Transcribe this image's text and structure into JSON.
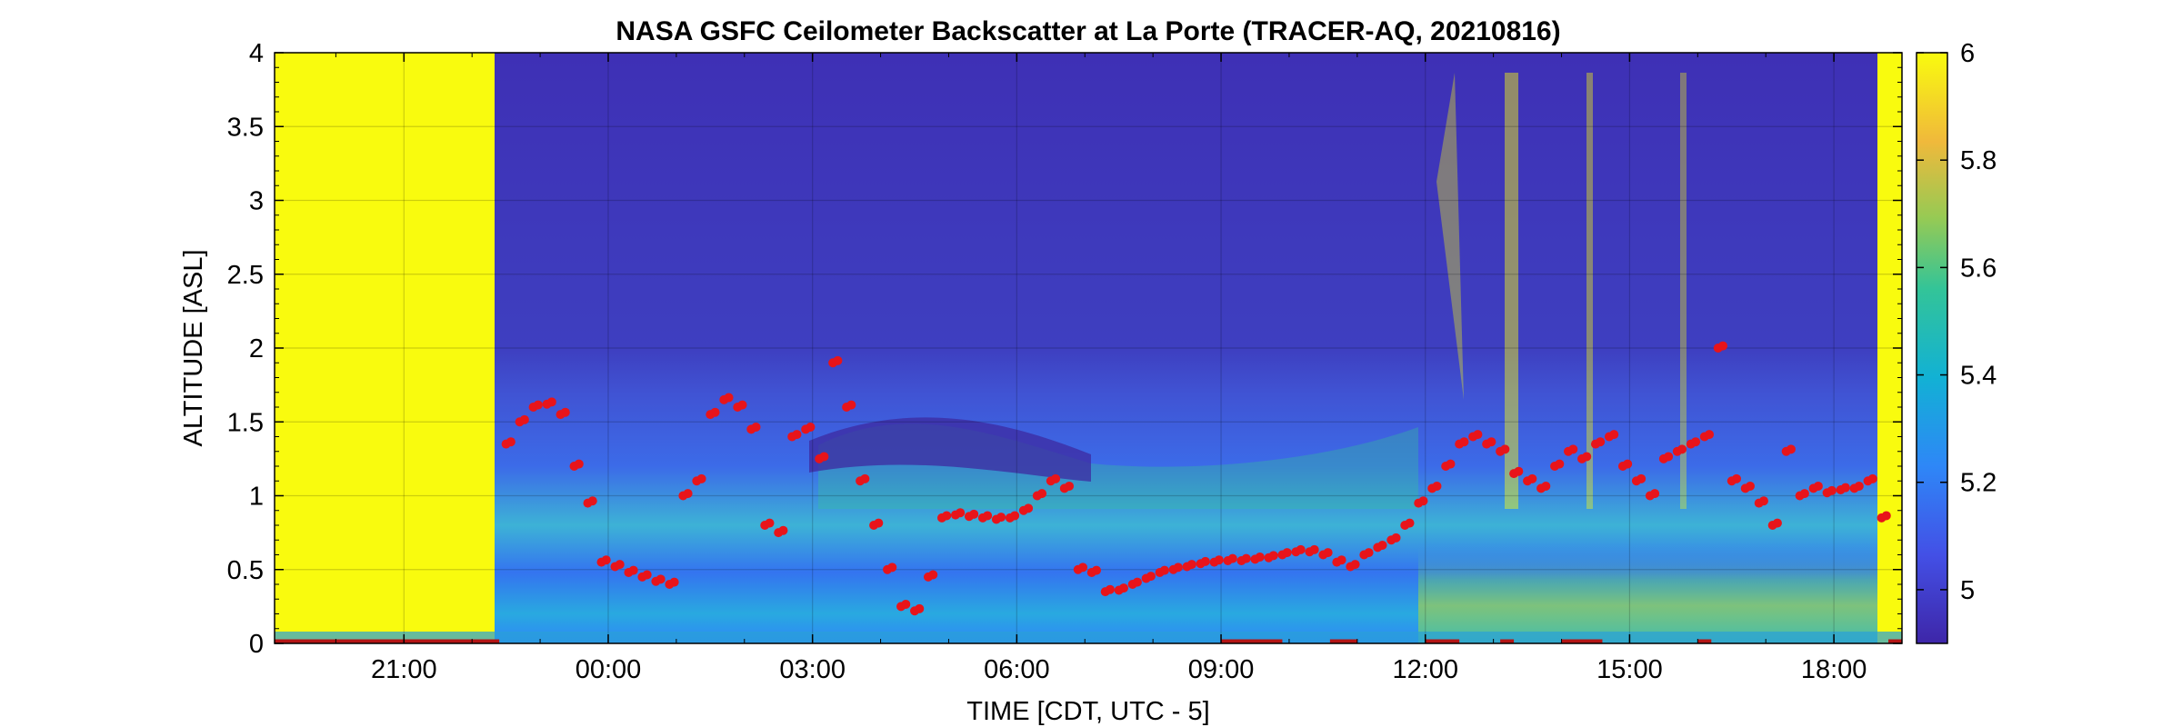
{
  "chart_data": {
    "type": "heatmap",
    "title": "NASA GSFC Ceilometer Backscatter at La Porte (TRACER-AQ, 20210816)",
    "xlabel": "TIME [CDT, UTC - 5]",
    "ylabel": "ALTITUDE [ASL]",
    "x_ticks": [
      "21:00",
      "00:00",
      "03:00",
      "06:00",
      "09:00",
      "12:00",
      "15:00",
      "18:00"
    ],
    "y_ticks": [
      "0",
      "0.5",
      "1",
      "1.5",
      "2",
      "2.5",
      "3",
      "3.5",
      "4"
    ],
    "colorbar_ticks": [
      "5",
      "5.2",
      "5.4",
      "5.6",
      "5.8",
      "6"
    ],
    "xlim_hours": [
      19.1,
      43.0
    ],
    "ylim": [
      0,
      4
    ],
    "clim": [
      4.9,
      6.0
    ],
    "colormap": "parula",
    "grid": true,
    "colors": {
      "high": "#f9fb0e",
      "low": "#3e26a8",
      "marker": "#e8141a"
    },
    "series": [
      {
        "type": "scatter",
        "x": [
          22.5,
          22.7,
          22.9,
          23.1,
          23.3,
          23.5,
          23.7,
          23.9,
          24.1,
          24.3,
          24.5,
          24.7,
          24.9,
          25.1,
          25.3,
          25.5,
          25.7,
          25.9,
          26.1,
          26.3,
          26.5,
          26.7,
          26.9,
          27.1,
          27.3,
          27.5,
          27.7,
          27.9,
          28.1,
          28.3,
          28.5,
          28.7,
          28.9,
          29.1,
          29.3,
          29.5,
          29.7,
          29.9,
          30.1,
          30.3,
          30.5,
          30.7,
          30.9,
          31.1,
          31.3,
          31.5,
          31.7,
          31.9,
          32.1,
          32.3,
          32.5,
          32.7,
          32.9,
          33.1,
          33.3,
          33.5,
          33.7,
          33.9,
          34.1,
          34.3,
          34.5,
          34.7,
          34.9,
          35.1,
          35.3,
          35.5,
          35.7,
          35.9,
          36.1,
          36.3,
          36.5,
          36.7,
          36.9,
          37.1,
          37.3,
          37.5,
          37.7,
          37.9,
          38.1,
          38.3,
          38.5,
          38.7,
          38.9,
          39.1,
          39.3,
          39.5,
          39.7,
          39.9,
          40.1,
          40.3,
          40.5,
          40.7,
          40.9,
          41.1,
          41.3,
          41.5,
          41.7,
          41.9,
          42.1,
          42.3,
          42.5,
          42.7
        ],
        "y": [
          1.35,
          1.5,
          1.6,
          1.62,
          1.55,
          1.2,
          0.95,
          0.55,
          0.52,
          0.48,
          0.45,
          0.42,
          0.4,
          1.0,
          1.1,
          1.55,
          1.65,
          1.6,
          1.45,
          0.8,
          0.75,
          1.4,
          1.45,
          1.25,
          1.9,
          1.6,
          1.1,
          0.8,
          0.5,
          0.25,
          0.22,
          0.45,
          0.85,
          0.87,
          0.86,
          0.85,
          0.84,
          0.85,
          0.9,
          1.0,
          1.1,
          1.05,
          0.5,
          0.48,
          0.35,
          0.36,
          0.4,
          0.44,
          0.48,
          0.5,
          0.52,
          0.54,
          0.55,
          0.56,
          0.56,
          0.57,
          0.58,
          0.6,
          0.62,
          0.62,
          0.6,
          0.55,
          0.52,
          0.6,
          0.65,
          0.7,
          0.8,
          0.95,
          1.05,
          1.2,
          1.35,
          1.4,
          1.35,
          1.3,
          1.15,
          1.1,
          1.05,
          1.2,
          1.3,
          1.25,
          1.35,
          1.4,
          1.2,
          1.1,
          1.0,
          1.25,
          1.3,
          1.35,
          1.4,
          2.0,
          1.1,
          1.05,
          0.95,
          0.8,
          1.3,
          1.0,
          1.05,
          1.02,
          1.04,
          1.05,
          1.1,
          0.85
        ]
      }
    ]
  }
}
